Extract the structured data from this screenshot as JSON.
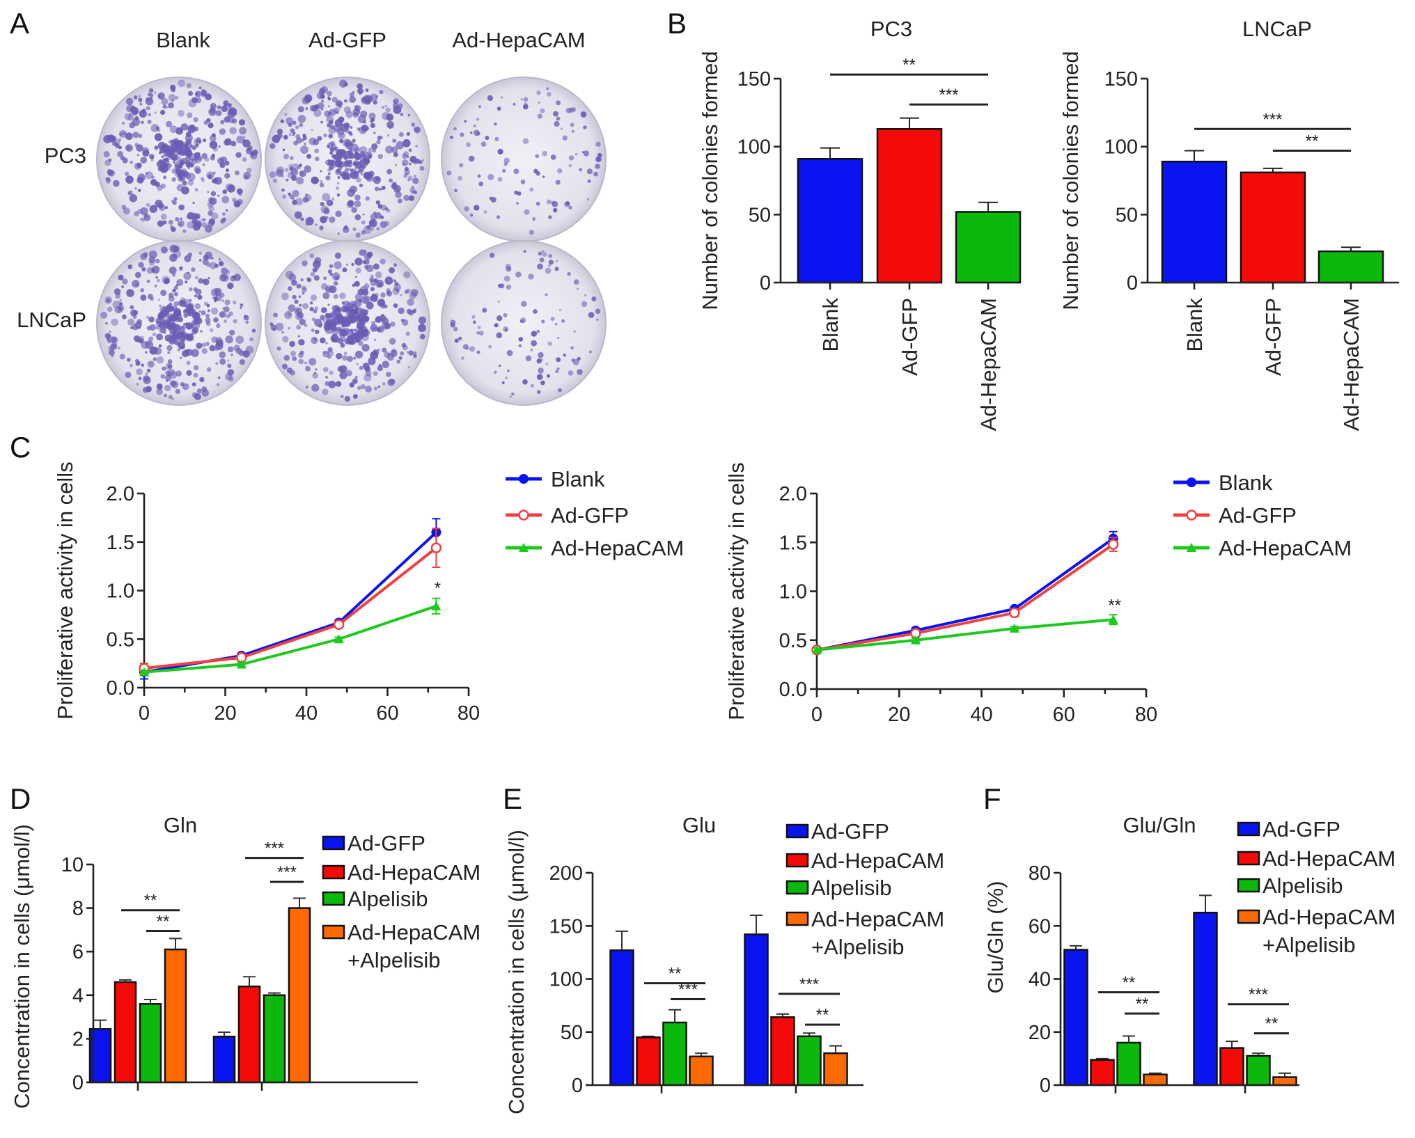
{
  "panel_labels": {
    "A": "A",
    "B": "B",
    "C": "C",
    "D": "D",
    "E": "E",
    "F": "F"
  },
  "panel_a": {
    "columns": [
      "Blank",
      "Ad-GFP",
      "Ad-HepaCAM"
    ],
    "rows": [
      "PC3",
      "LNCaP"
    ]
  },
  "colors": {
    "blue": "#0a14f0",
    "red": "#f50a0a",
    "green": "#0ab90a",
    "orange": "#ff6a00",
    "dish_stain": "#6a5cb4"
  },
  "chart_data": [
    {
      "id": "B-PC3",
      "type": "bar",
      "title": "PC3",
      "ylabel": "Number of colonies formed",
      "categories": [
        "Blank",
        "Ad-GFP",
        "Ad-HepaCAM"
      ],
      "values": [
        91,
        113,
        52
      ],
      "errors": [
        8,
        8,
        7
      ],
      "colors": [
        "#0a14f0",
        "#f50a0a",
        "#0ab90a"
      ],
      "ylim": [
        0,
        150
      ],
      "yticks": [
        "0",
        "50",
        "100",
        "150"
      ],
      "significance": [
        {
          "from": 0,
          "to": 2,
          "y": 153,
          "label": "**"
        },
        {
          "from": 1,
          "to": 2,
          "y": 131,
          "label": "***"
        }
      ]
    },
    {
      "id": "B-LNCaP",
      "type": "bar",
      "title": "LNCaP",
      "ylabel": "Number of colonies formed",
      "categories": [
        "Blank",
        "Ad-GFP",
        "Ad-HepaCAM"
      ],
      "values": [
        89,
        81,
        23
      ],
      "errors": [
        8,
        3,
        3
      ],
      "colors": [
        "#0a14f0",
        "#f50a0a",
        "#0ab90a"
      ],
      "ylim": [
        0,
        150
      ],
      "yticks": [
        "0",
        "50",
        "100",
        "150"
      ],
      "significance": [
        {
          "from": 0,
          "to": 2,
          "y": 113,
          "label": "***"
        },
        {
          "from": 1,
          "to": 2,
          "y": 97,
          "label": "**"
        }
      ]
    },
    {
      "id": "C-left",
      "type": "line",
      "ylabel": "Proliferative activity in cells",
      "x": [
        0,
        24,
        48,
        72
      ],
      "xlim": [
        0,
        80
      ],
      "xticks": [
        "0",
        "20",
        "40",
        "60",
        "80"
      ],
      "ylim": [
        0,
        2
      ],
      "yticks": [
        "0.0",
        "0.5",
        "1.0",
        "1.5",
        "2.0"
      ],
      "series": [
        {
          "name": "Blank",
          "values": [
            0.16,
            0.33,
            0.67,
            1.6
          ],
          "errors": [
            0.07,
            0.02,
            0.03,
            0.14
          ],
          "color": "#0a14f0",
          "marker": "filled-circle"
        },
        {
          "name": "Ad-GFP",
          "values": [
            0.2,
            0.31,
            0.65,
            1.44
          ],
          "errors": [
            0.05,
            0.02,
            0.03,
            0.2
          ],
          "color": "#f04040",
          "marker": "open-circle"
        },
        {
          "name": "Ad-HepaCAM",
          "values": [
            0.16,
            0.24,
            0.5,
            0.84
          ],
          "errors": [
            0.02,
            0.02,
            0.02,
            0.08
          ],
          "color": "#1ec81e",
          "marker": "triangle"
        }
      ],
      "annotation": {
        "x": 72,
        "y": 0.97,
        "label": "*"
      },
      "legend": "right"
    },
    {
      "id": "C-right",
      "type": "line",
      "ylabel": "Proliferative activity in cells",
      "x": [
        0,
        24,
        48,
        72
      ],
      "xlim": [
        0,
        80
      ],
      "xticks": [
        "0",
        "20",
        "40",
        "60",
        "80"
      ],
      "ylim": [
        0,
        2
      ],
      "yticks": [
        "0.0",
        "0.5",
        "1.0",
        "1.5",
        "2.0"
      ],
      "series": [
        {
          "name": "Blank",
          "values": [
            0.4,
            0.6,
            0.82,
            1.54
          ],
          "errors": [
            0.02,
            0.02,
            0.02,
            0.07
          ],
          "color": "#0a14f0",
          "marker": "filled-circle"
        },
        {
          "name": "Ad-GFP",
          "values": [
            0.4,
            0.57,
            0.78,
            1.48
          ],
          "errors": [
            0.02,
            0.02,
            0.04,
            0.07
          ],
          "color": "#f04040",
          "marker": "open-circle"
        },
        {
          "name": "Ad-HepaCAM",
          "values": [
            0.4,
            0.5,
            0.62,
            0.71
          ],
          "errors": [
            0.02,
            0.02,
            0.02,
            0.05
          ],
          "color": "#1ec81e",
          "marker": "triangle"
        }
      ],
      "annotation": {
        "x": 72,
        "y": 0.8,
        "label": "**"
      },
      "legend": "right"
    },
    {
      "id": "D",
      "type": "bar",
      "title": "Gln",
      "ylabel": "Concentration in cells (μmol/l)",
      "groups": 2,
      "ylim": [
        0,
        10
      ],
      "yticks": [
        "0",
        "2",
        "4",
        "6",
        "8",
        "10"
      ],
      "series": [
        {
          "name": "Ad-GFP",
          "values": [
            2.45,
            2.1
          ],
          "errors": [
            0.4,
            0.2
          ],
          "color": "#0a14f0"
        },
        {
          "name": "Ad-HepaCAM",
          "values": [
            4.6,
            4.4
          ],
          "errors": [
            0.1,
            0.45
          ],
          "color": "#f50a0a"
        },
        {
          "name": "Alpelisib",
          "values": [
            3.6,
            4.0
          ],
          "errors": [
            0.2,
            0.1
          ],
          "color": "#0ab90a"
        },
        {
          "name": "Ad-HepaCAM",
          "name2": "+Alpelisib",
          "values": [
            6.1,
            8.0
          ],
          "errors": [
            0.5,
            0.45
          ],
          "color": "#ff6a00"
        }
      ],
      "significance": [
        {
          "group": 0,
          "from": 1,
          "to": 3,
          "y": 7.9,
          "label": "**"
        },
        {
          "group": 0,
          "from": 2,
          "to": 3,
          "y": 6.95,
          "label": "**"
        },
        {
          "group": 1,
          "from": 1,
          "to": 3,
          "y": 10.3,
          "label": "***"
        },
        {
          "group": 1,
          "from": 2,
          "to": 3,
          "y": 9.2,
          "label": "***"
        }
      ],
      "legend": "right"
    },
    {
      "id": "E",
      "type": "bar",
      "title": "Glu",
      "ylabel": "Concentration in cells (μmol/l)",
      "groups": 2,
      "ylim": [
        0,
        200
      ],
      "yticks": [
        "0",
        "50",
        "100",
        "150",
        "200"
      ],
      "series": [
        {
          "name": "Ad-GFP",
          "values": [
            127,
            142
          ],
          "errors": [
            18,
            18
          ],
          "color": "#0a14f0"
        },
        {
          "name": "Ad-HepaCAM",
          "values": [
            45,
            64
          ],
          "errors": [
            1,
            3
          ],
          "color": "#f50a0a"
        },
        {
          "name": "Alpelisib",
          "values": [
            59,
            46
          ],
          "errors": [
            12,
            3
          ],
          "color": "#0ab90a"
        },
        {
          "name": "Ad-HepaCAM",
          "name2": "+Alpelisib",
          "values": [
            27,
            30
          ],
          "errors": [
            3,
            7
          ],
          "color": "#ff6a00"
        }
      ],
      "significance": [
        {
          "group": 0,
          "from": 1,
          "to": 3,
          "y": 96,
          "label": "**"
        },
        {
          "group": 0,
          "from": 2,
          "to": 3,
          "y": 81,
          "label": "***"
        },
        {
          "group": 1,
          "from": 1,
          "to": 3,
          "y": 86,
          "label": "***"
        },
        {
          "group": 1,
          "from": 2,
          "to": 3,
          "y": 57,
          "label": "**"
        }
      ],
      "legend": "right"
    },
    {
      "id": "F",
      "type": "bar",
      "title": "Glu/Gln",
      "ylabel": "Glu/Gln (%)",
      "groups": 2,
      "ylim": [
        0,
        80
      ],
      "yticks": [
        "0",
        "20",
        "40",
        "60",
        "80"
      ],
      "series": [
        {
          "name": "Ad-GFP",
          "values": [
            51,
            65
          ],
          "errors": [
            1.5,
            6.5
          ],
          "color": "#0a14f0"
        },
        {
          "name": "Ad-HepaCAM",
          "values": [
            9.5,
            14
          ],
          "errors": [
            0.5,
            2.5
          ],
          "color": "#f50a0a"
        },
        {
          "name": "Alpelisib",
          "values": [
            16,
            11
          ],
          "errors": [
            2.5,
            1
          ],
          "color": "#0ab90a"
        },
        {
          "name": "Ad-HepaCAM",
          "name2": "+Alpelisib",
          "values": [
            4,
            3
          ],
          "errors": [
            0.5,
            1.5
          ],
          "color": "#ff6a00"
        }
      ],
      "significance": [
        {
          "group": 0,
          "from": 1,
          "to": 3,
          "y": 35,
          "label": "**"
        },
        {
          "group": 0,
          "from": 2,
          "to": 3,
          "y": 27,
          "label": "**"
        },
        {
          "group": 1,
          "from": 1,
          "to": 3,
          "y": 30.5,
          "label": "***"
        },
        {
          "group": 1,
          "from": 2,
          "to": 3,
          "y": 19.5,
          "label": "**"
        }
      ],
      "legend": "right"
    }
  ]
}
